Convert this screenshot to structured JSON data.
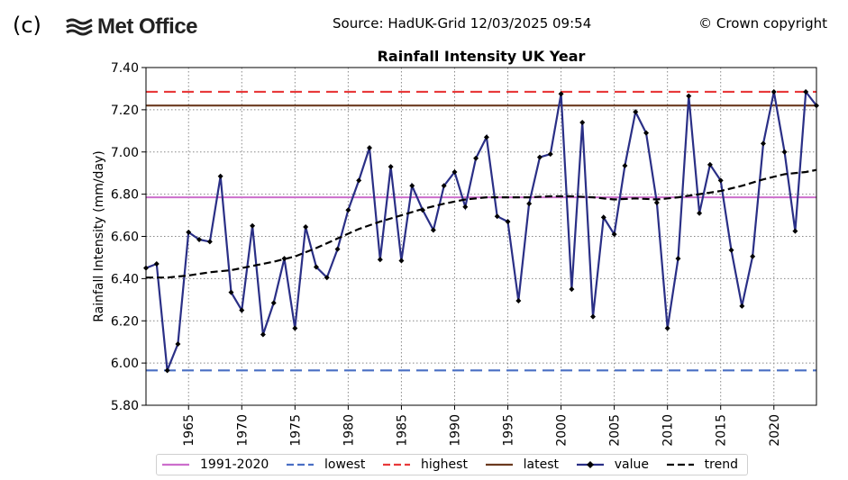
{
  "header": {
    "panel_label": "(c)",
    "logo_text": "Met Office",
    "source": "Source: HadUK-Grid 12/03/2025 09:54",
    "copyright": "© Crown copyright"
  },
  "colors": {
    "baseline": "#cc6ecc",
    "lowest": "#4a6fc4",
    "highest": "#e8393a",
    "latest": "#6b3a1f",
    "value": "#2a2f86",
    "trend": "#000000"
  },
  "legend": [
    {
      "key": "baseline",
      "label": "1991-2020",
      "style": "solid"
    },
    {
      "key": "lowest",
      "label": "lowest",
      "style": "dashed"
    },
    {
      "key": "highest",
      "label": "highest",
      "style": "dashed"
    },
    {
      "key": "latest",
      "label": "latest",
      "style": "solid"
    },
    {
      "key": "value",
      "label": "value",
      "style": "marker"
    },
    {
      "key": "trend",
      "label": "trend",
      "style": "dashed"
    }
  ],
  "chart_data": {
    "type": "line",
    "title": "Rainfall Intensity UK Year",
    "xlabel": "",
    "ylabel": "Rainfall Intensity (mm/day)",
    "xlim": [
      1961,
      2024
    ],
    "ylim": [
      5.8,
      7.4
    ],
    "yticks": [
      "5.80",
      "6.00",
      "6.20",
      "6.40",
      "6.60",
      "6.80",
      "7.00",
      "7.20",
      "7.40"
    ],
    "xticks": [
      "1965",
      "1970",
      "1975",
      "1980",
      "1985",
      "1990",
      "1995",
      "2000",
      "2005",
      "2010",
      "2015",
      "2020"
    ],
    "grid": true,
    "legend_position": "bottom",
    "reference_lines": {
      "baseline_1991_2020": 6.785,
      "lowest": 5.965,
      "highest": 7.285,
      "latest": 7.22
    },
    "series": [
      {
        "name": "value",
        "x": [
          1961,
          1962,
          1963,
          1964,
          1965,
          1966,
          1967,
          1968,
          1969,
          1970,
          1971,
          1972,
          1973,
          1974,
          1975,
          1976,
          1977,
          1978,
          1979,
          1980,
          1981,
          1982,
          1983,
          1984,
          1985,
          1986,
          1987,
          1988,
          1989,
          1990,
          1991,
          1992,
          1993,
          1994,
          1995,
          1996,
          1997,
          1998,
          1999,
          2000,
          2001,
          2002,
          2003,
          2004,
          2005,
          2006,
          2007,
          2008,
          2009,
          2010,
          2011,
          2012,
          2013,
          2014,
          2015,
          2016,
          2017,
          2018,
          2019,
          2020,
          2021,
          2022,
          2023,
          2024
        ],
        "y": [
          6.45,
          6.47,
          5.965,
          6.09,
          6.62,
          6.585,
          6.575,
          6.885,
          6.335,
          6.25,
          6.65,
          6.135,
          6.285,
          6.495,
          6.165,
          6.645,
          6.455,
          6.405,
          6.54,
          6.725,
          6.865,
          7.02,
          6.49,
          6.93,
          6.485,
          6.84,
          6.725,
          6.63,
          6.84,
          6.905,
          6.74,
          6.97,
          7.07,
          6.695,
          6.67,
          6.295,
          6.755,
          6.975,
          6.99,
          7.275,
          6.35,
          7.14,
          6.22,
          6.69,
          6.61,
          6.935,
          7.19,
          7.09,
          6.76,
          6.165,
          6.495,
          7.265,
          6.71,
          6.94,
          6.865,
          6.535,
          6.27,
          6.505,
          7.04,
          7.285,
          7.0,
          6.625,
          7.285,
          7.22
        ]
      },
      {
        "name": "trend",
        "x": [
          1961,
          1963,
          1965,
          1967,
          1969,
          1971,
          1973,
          1975,
          1977,
          1979,
          1981,
          1983,
          1985,
          1987,
          1989,
          1991,
          1993,
          1995,
          1997,
          1999,
          2001,
          2003,
          2005,
          2007,
          2009,
          2011,
          2013,
          2015,
          2017,
          2019,
          2021,
          2023,
          2024
        ],
        "y": [
          6.405,
          6.405,
          6.415,
          6.43,
          6.44,
          6.46,
          6.48,
          6.505,
          6.545,
          6.59,
          6.635,
          6.67,
          6.7,
          6.73,
          6.755,
          6.775,
          6.785,
          6.785,
          6.785,
          6.79,
          6.79,
          6.785,
          6.775,
          6.78,
          6.775,
          6.785,
          6.8,
          6.815,
          6.84,
          6.87,
          6.895,
          6.905,
          6.915
        ]
      }
    ]
  }
}
